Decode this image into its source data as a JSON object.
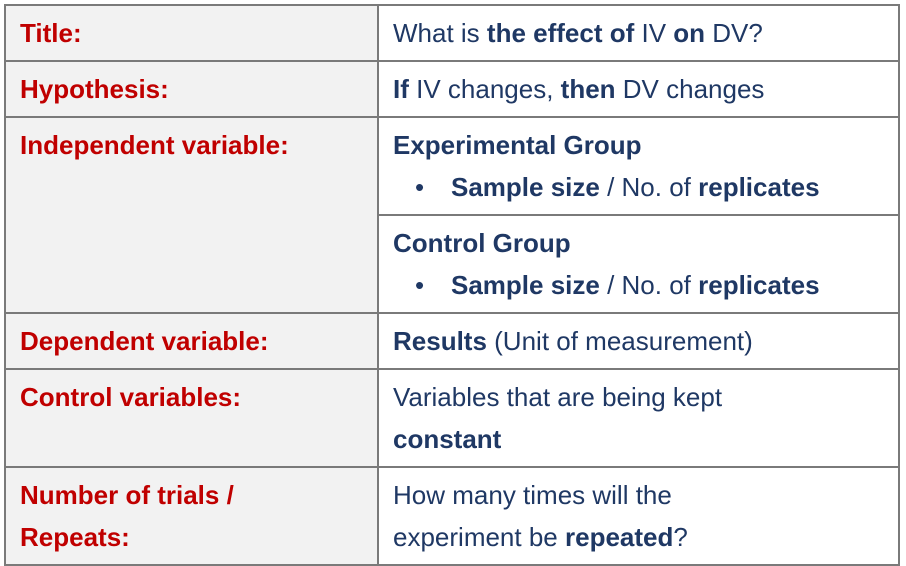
{
  "rows": {
    "title": {
      "label": "Title:",
      "parts": [
        "What is ",
        "the effect of",
        " IV ",
        "on",
        " DV?"
      ]
    },
    "hypothesis": {
      "label": "Hypothesis:",
      "parts": [
        "If",
        " IV changes, ",
        "then",
        " DV changes"
      ]
    },
    "independent": {
      "label": "Independent variable:",
      "experimental": {
        "heading": "Experimental Group",
        "bullet": [
          "Sample size",
          " / No. of ",
          "replicates"
        ]
      },
      "control": {
        "heading": "Control Group",
        "bullet": [
          "Sample size",
          " / No. of ",
          "replicates"
        ]
      },
      "bullet_char": "•"
    },
    "dependent": {
      "label": "Dependent variable:",
      "parts": [
        "Results",
        " (Unit of measurement)"
      ]
    },
    "control_vars": {
      "label": "Control variables:",
      "line1": "Variables that are being kept",
      "line2": "constant"
    },
    "trials": {
      "label_line1": "Number of trials /",
      "label_line2": "Repeats:",
      "line1": "How many times will the",
      "parts": [
        "experiment be ",
        "repeated",
        "?"
      ]
    }
  },
  "colors": {
    "label_text": "#c00000",
    "value_text": "#1f3864",
    "label_bg": "#f2f2f2",
    "border": "#7a7a7a"
  }
}
